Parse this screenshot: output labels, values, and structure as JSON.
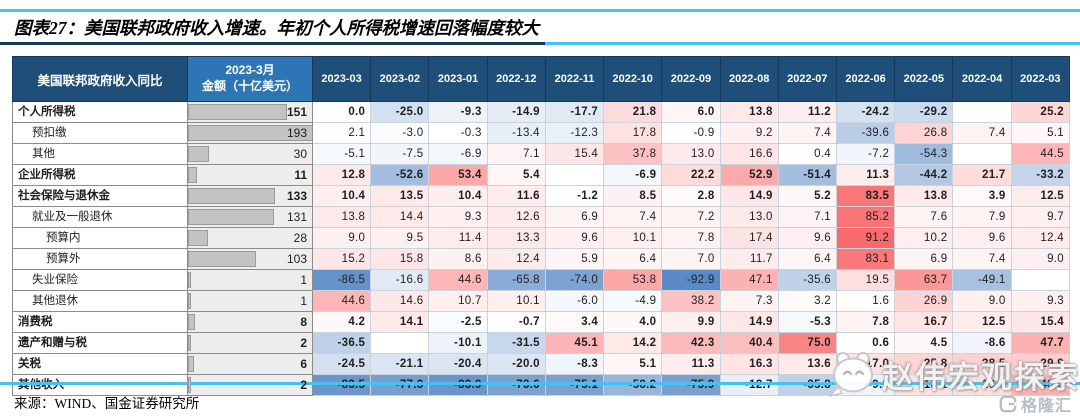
{
  "title": "图表27：美国联邦政府收入增速。年初个人所得税增速回落幅度较大",
  "source": "来源：WIND、国金证券研究所",
  "watermark": {
    "text": "赵伟宏观探索",
    "logo": "格隆汇"
  },
  "colors": {
    "header_bg": "#1f4e79",
    "amount_header_bg": "#2e75b6",
    "accent_line": "#45c2f1",
    "title_rule": "#17375e",
    "bar_fill": "#c3c3c3",
    "scale_negative": "#5a8ac6",
    "scale_zero": "#ffffff",
    "scale_positive": "#f8696b"
  },
  "chart_data": {
    "type": "heatmap",
    "title": "美国联邦政府收入增速（同比，%），红=高增速，蓝=负增速",
    "corner_header": "美国联邦政府收入同比",
    "amount_header_line1": "2023-3月",
    "amount_header_line2": "金额（十亿美元）",
    "columns": [
      "2023-03",
      "2023-02",
      "2023-01",
      "2022-12",
      "2022-11",
      "2022-10",
      "2022-09",
      "2022-08",
      "2022-07",
      "2022-06",
      "2022-05",
      "2022-04",
      "2022-03"
    ],
    "amount_bar_max": 193,
    "color_domain": [
      -93,
      0,
      92
    ],
    "rows": [
      {
        "label": "个人所得税",
        "level": 0,
        "bold": true,
        "amount": 151,
        "values": [
          0.0,
          -25.0,
          -9.3,
          -14.9,
          -17.7,
          21.8,
          6.0,
          13.8,
          11.2,
          -24.2,
          -29.2,
          null,
          25.2
        ]
      },
      {
        "label": "预扣缴",
        "level": 1,
        "bold": false,
        "amount": 193,
        "values": [
          2.1,
          -3.0,
          -0.3,
          -13.4,
          -12.3,
          17.8,
          -0.9,
          9.2,
          7.4,
          -39.6,
          26.8,
          7.4,
          5.1
        ]
      },
      {
        "label": "其他",
        "level": 1,
        "bold": false,
        "amount": 30,
        "values": [
          -5.1,
          -7.5,
          -6.9,
          7.1,
          15.4,
          37.8,
          13.0,
          16.6,
          0.4,
          -7.2,
          -54.3,
          null,
          44.5
        ]
      },
      {
        "label": "企业所得税",
        "level": 0,
        "bold": true,
        "amount": 11,
        "values": [
          12.8,
          -52.6,
          53.4,
          5.4,
          null,
          -6.9,
          22.2,
          52.9,
          -51.4,
          11.3,
          -44.2,
          21.7,
          -33.2
        ]
      },
      {
        "label": "社会保险与退休金",
        "level": 0,
        "bold": true,
        "amount": 133,
        "values": [
          10.4,
          13.5,
          10.4,
          11.6,
          -1.2,
          8.5,
          2.8,
          14.9,
          5.2,
          83.5,
          13.8,
          3.9,
          12.5
        ]
      },
      {
        "label": "就业及一般退休",
        "level": 1,
        "bold": false,
        "amount": 131,
        "values": [
          13.8,
          14.4,
          9.3,
          12.6,
          6.9,
          7.4,
          7.2,
          13.0,
          7.1,
          85.2,
          7.6,
          7.9,
          9.7
        ]
      },
      {
        "label": "预算内",
        "level": 2,
        "bold": false,
        "amount": 28,
        "values": [
          9.0,
          9.5,
          11.4,
          13.3,
          9.6,
          10.1,
          7.8,
          17.4,
          9.6,
          91.2,
          10.2,
          9.6,
          12.4
        ]
      },
      {
        "label": "预算外",
        "level": 2,
        "bold": false,
        "amount": 103,
        "values": [
          15.2,
          15.8,
          8.6,
          12.4,
          5.9,
          6.4,
          7.0,
          11.7,
          6.4,
          83.1,
          6.9,
          7.4,
          9.0
        ]
      },
      {
        "label": "失业保险",
        "level": 1,
        "bold": false,
        "amount": 1,
        "values": [
          -86.5,
          -16.6,
          44.6,
          -65.8,
          -74.0,
          53.8,
          -92.9,
          47.1,
          -35.6,
          19.5,
          63.7,
          -49.1,
          null
        ]
      },
      {
        "label": "其他退休",
        "level": 1,
        "bold": false,
        "amount": 1,
        "values": [
          44.6,
          14.6,
          10.7,
          10.1,
          -6.0,
          -4.9,
          38.2,
          7.3,
          3.2,
          1.6,
          26.9,
          9.0,
          9.3
        ]
      },
      {
        "label": "消费税",
        "level": 0,
        "bold": true,
        "amount": 8,
        "values": [
          4.2,
          14.1,
          -2.5,
          -0.7,
          3.4,
          4.0,
          9.9,
          14.9,
          -5.3,
          7.8,
          16.7,
          12.5,
          15.4
        ]
      },
      {
        "label": "遗产和赠与税",
        "level": 0,
        "bold": true,
        "amount": 2,
        "values": [
          -36.5,
          null,
          -10.1,
          -31.5,
          45.1,
          14.2,
          42.3,
          40.4,
          75.0,
          0.6,
          4.5,
          -8.6,
          47.7
        ]
      },
      {
        "label": "关税",
        "level": 0,
        "bold": true,
        "amount": 6,
        "values": [
          -24.5,
          -21.1,
          -20.4,
          -20.0,
          -8.3,
          5.1,
          11.3,
          16.3,
          13.6,
          17.0,
          25.8,
          28.5,
          29.9
        ]
      },
      {
        "label": "其他收入",
        "level": 0,
        "bold": true,
        "amount": 2,
        "values": [
          -83.5,
          -77.3,
          -83.9,
          -73.6,
          -75.1,
          -58.2,
          -75.9,
          -12.7,
          -35.8,
          -9.0,
          18.1,
          19.7,
          48.6
        ]
      }
    ]
  }
}
